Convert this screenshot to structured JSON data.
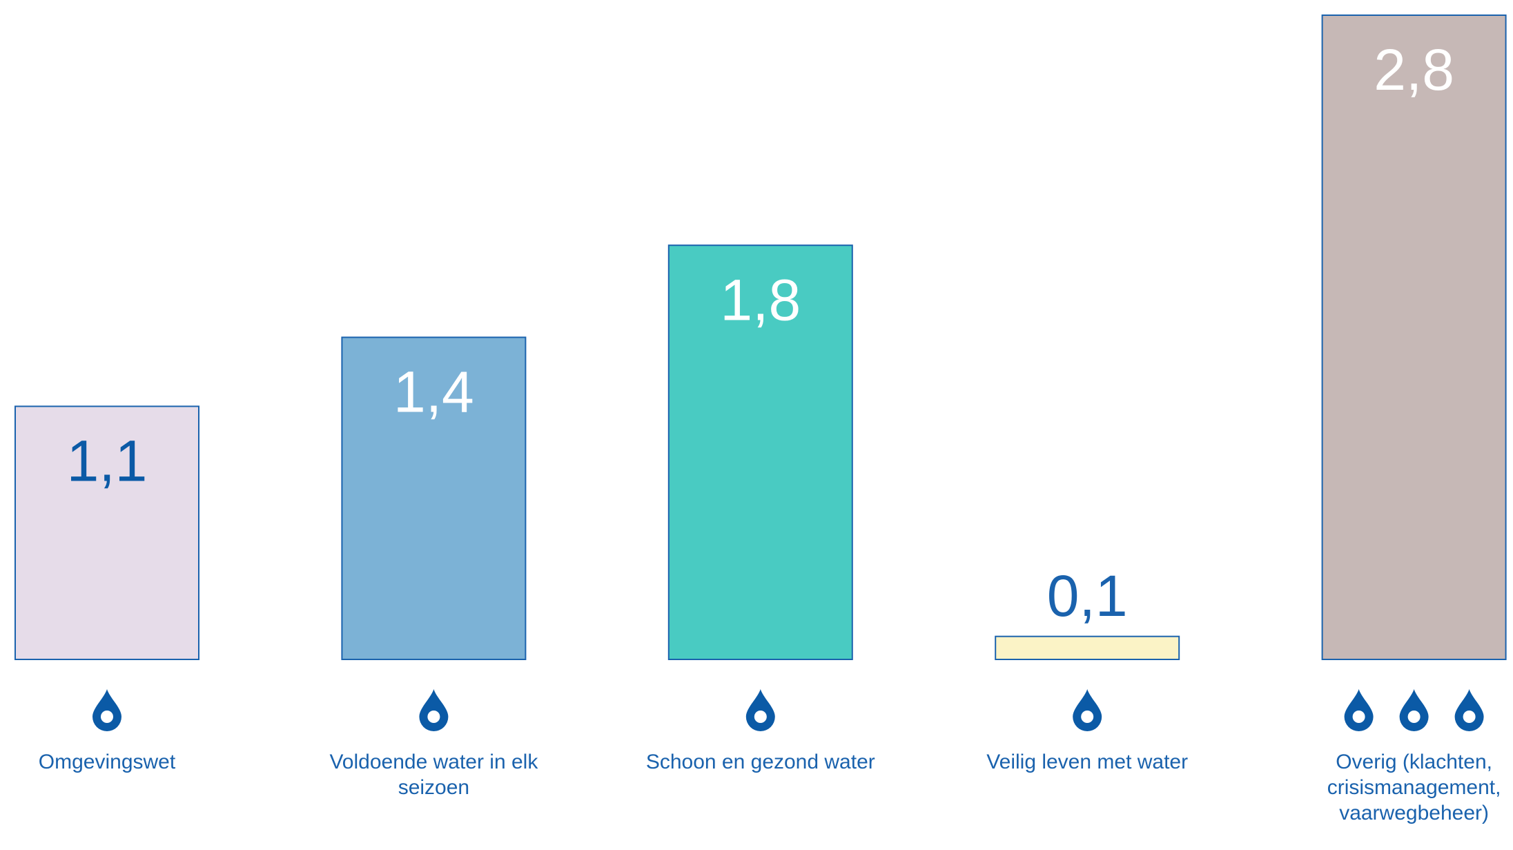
{
  "chart_data": {
    "type": "bar",
    "categories": [
      "Omgevingswet",
      "Voldoende water in elk seizoen",
      "Schoon en gezond water",
      "Veilig leven met water",
      "Overig (klachten, crisismanagement, vaarwegbeheer)"
    ],
    "values": [
      1.1,
      1.4,
      1.8,
      0.1,
      2.8
    ],
    "value_labels": [
      "1,1",
      "1,4",
      "1,8",
      "0,1",
      "2,8"
    ],
    "colors": [
      "#e6dce9",
      "#7cb2d6",
      "#49cbc2",
      "#fbf3c6",
      "#c6b8b6"
    ],
    "label_colors": [
      "#0b5aa6",
      "#ffffff",
      "#ffffff",
      "#0b5aa6",
      "#ffffff"
    ],
    "border_color": "#1a62ad",
    "ylim": [
      0,
      2.8
    ]
  }
}
